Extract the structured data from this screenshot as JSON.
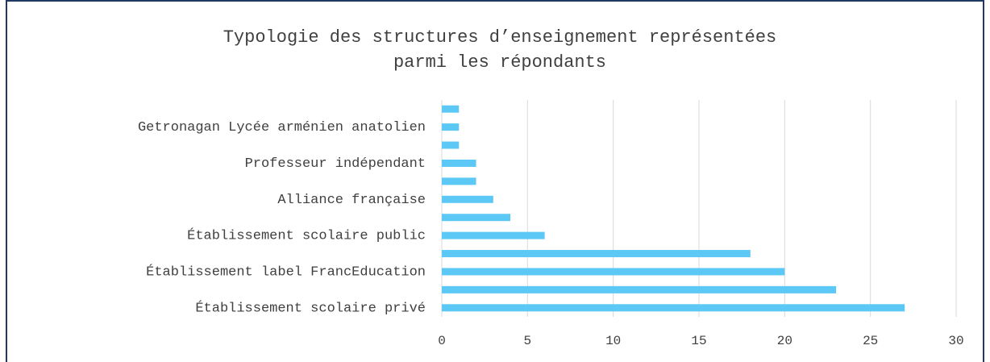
{
  "chart_data": {
    "type": "bar",
    "orientation": "horizontal",
    "title": [
      "Typologie des structures d’enseignement représentées",
      "parmi les répondants"
    ],
    "categories": [
      "Établissement scolaire privé",
      null,
      "Établissement label FrancEducation",
      null,
      "Établissement scolaire public",
      null,
      "Alliance française",
      null,
      "Professeur indépendant",
      null,
      "Getronagan Lycée arménien anatolien",
      null
    ],
    "values": [
      27,
      23,
      20,
      18,
      6,
      4,
      3,
      2,
      2,
      1,
      1,
      1
    ],
    "color": "#5bc8f5",
    "xlim": [
      0,
      30
    ],
    "xticks": [
      0,
      5,
      10,
      15,
      20,
      25,
      30
    ],
    "grid": true
  }
}
